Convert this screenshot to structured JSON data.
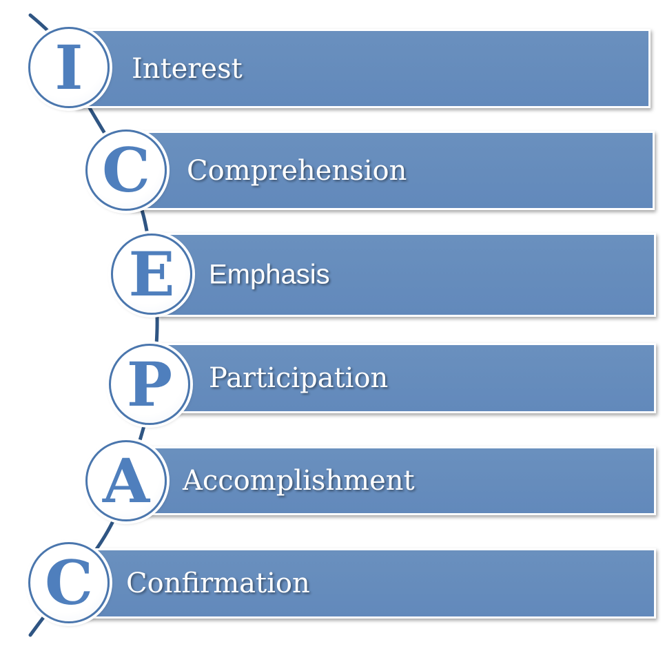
{
  "items": [
    {
      "letter": "I",
      "label": "Interest"
    },
    {
      "letter": "C",
      "label": "Comprehension"
    },
    {
      "letter": "E",
      "label": "Emphasis"
    },
    {
      "letter": "P",
      "label": "Participation"
    },
    {
      "letter": "A",
      "label": "Accomplishment"
    },
    {
      "letter": "C",
      "label": "Confirmation"
    }
  ],
  "colors": {
    "bar": "#6a90be",
    "letter": "#4f7fbd",
    "circle_border": "#4a76ad",
    "connector": "#2f5583"
  }
}
